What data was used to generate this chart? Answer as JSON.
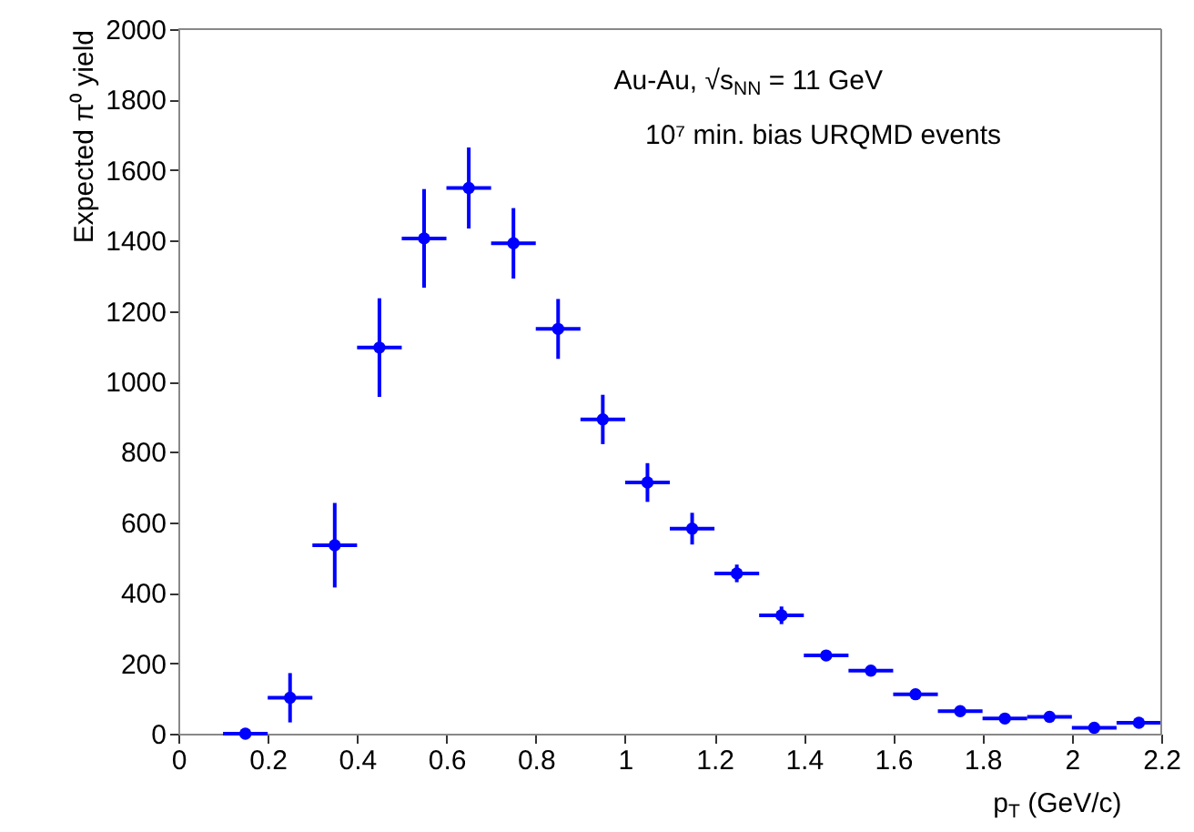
{
  "chart_data": {
    "type": "scatter",
    "xlabel": "p$_{T}$ (GeV/c)",
    "ylabel": "Expected π⁰ yield",
    "annotations": [
      "Au-Au, √s$_{NN}$ = 11 GeV",
      "10⁷ min. bias URQMD events"
    ],
    "x": [
      0.15,
      0.25,
      0.35,
      0.45,
      0.55,
      0.65,
      0.75,
      0.85,
      0.95,
      1.05,
      1.15,
      1.25,
      1.35,
      1.45,
      1.55,
      1.65,
      1.75,
      1.85,
      1.95,
      2.05,
      2.15
    ],
    "series": [
      {
        "color": "#0000ff",
        "values": [
          0,
          102,
          535,
          1096,
          1406,
          1549,
          1392,
          1149,
          892,
          713,
          582,
          455,
          336,
          222,
          179,
          112,
          64,
          43,
          48,
          17,
          31
        ],
        "errors": [
          null,
          70,
          120,
          140,
          140,
          115,
          100,
          85,
          70,
          55,
          45,
          25,
          25,
          15,
          12,
          null,
          null,
          null,
          null,
          null,
          null
        ],
        "xerrors": [
          0.05,
          0.05,
          0.05,
          0.05,
          0.05,
          0.05,
          0.05,
          0.05,
          0.05,
          0.05,
          0.05,
          0.05,
          0.05,
          0.05,
          0.05,
          0.05,
          0.05,
          0.05,
          0.05,
          0.05,
          0.05
        ]
      }
    ],
    "xlim": [
      0,
      2.2
    ],
    "xticks": [
      0,
      0.2,
      0.4,
      0.6,
      0.8,
      1,
      1.2,
      1.4,
      1.6,
      1.8,
      2,
      2.2
    ],
    "ylim": [
      0,
      2000
    ],
    "yticks": [
      0,
      200,
      400,
      600,
      800,
      1000,
      1200,
      1400,
      1600,
      1800,
      2000
    ],
    "marker": "circle",
    "grid": false
  }
}
